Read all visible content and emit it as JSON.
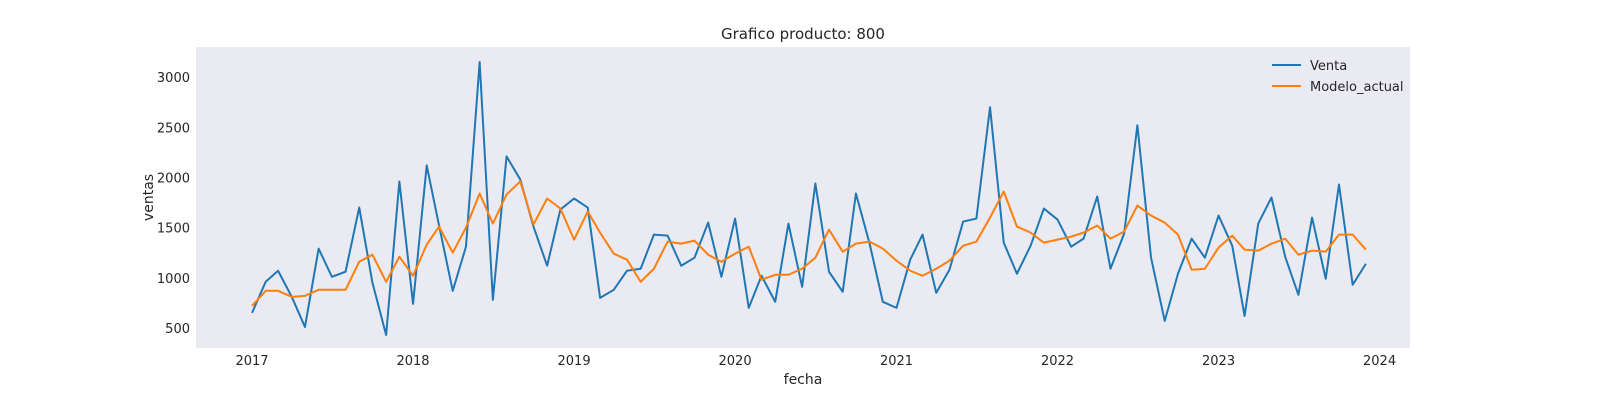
{
  "chart_data": {
    "type": "line",
    "title": "Grafico producto: 800",
    "xlabel": "fecha",
    "ylabel": "ventas",
    "xlim": [
      "2016-08-27",
      "2024-03-10"
    ],
    "ylim": [
      300,
      3300
    ],
    "x_ticks": [
      "2017",
      "2018",
      "2019",
      "2020",
      "2021",
      "2022",
      "2023",
      "2024"
    ],
    "y_ticks": [
      500,
      1000,
      1500,
      2000,
      2500,
      3000
    ],
    "grid": false,
    "legend_position": "top-right",
    "background_color": "#eaeaf2",
    "x": [
      "2017-01",
      "2017-02",
      "2017-03",
      "2017-04",
      "2017-05",
      "2017-06",
      "2017-07",
      "2017-08",
      "2017-09",
      "2017-10",
      "2017-11",
      "2017-12",
      "2018-01",
      "2018-02",
      "2018-03",
      "2018-04",
      "2018-05",
      "2018-06",
      "2018-07",
      "2018-08",
      "2018-09",
      "2018-10",
      "2018-11",
      "2018-12",
      "2019-01",
      "2019-02",
      "2019-03",
      "2019-04",
      "2019-05",
      "2019-06",
      "2019-07",
      "2019-08",
      "2019-09",
      "2019-10",
      "2019-11",
      "2019-12",
      "2020-01",
      "2020-02",
      "2020-03",
      "2020-04",
      "2020-05",
      "2020-06",
      "2020-07",
      "2020-08",
      "2020-09",
      "2020-10",
      "2020-11",
      "2020-12",
      "2021-01",
      "2021-02",
      "2021-03",
      "2021-04",
      "2021-05",
      "2021-06",
      "2021-07",
      "2021-08",
      "2021-09",
      "2021-10",
      "2021-11",
      "2021-12",
      "2022-01",
      "2022-02",
      "2022-03",
      "2022-04",
      "2022-05",
      "2022-06",
      "2022-07",
      "2022-08",
      "2022-09",
      "2022-10",
      "2022-11",
      "2022-12",
      "2023-01",
      "2023-02",
      "2023-03",
      "2023-04",
      "2023-05",
      "2023-06",
      "2023-07",
      "2023-08",
      "2023-09",
      "2023-10",
      "2023-11",
      "2023-12"
    ],
    "series": [
      {
        "name": "Venta",
        "color": "#1f77b4",
        "values": [
          650,
          960,
          1070,
          810,
          510,
          1290,
          1010,
          1060,
          1700,
          950,
          430,
          1960,
          740,
          2120,
          1520,
          870,
          1310,
          3150,
          780,
          2210,
          1980,
          1510,
          1120,
          1680,
          1790,
          1700,
          800,
          880,
          1070,
          1090,
          1430,
          1420,
          1120,
          1200,
          1550,
          1010,
          1590,
          700,
          1020,
          760,
          1540,
          910,
          1940,
          1060,
          860,
          1840,
          1340,
          760,
          700,
          1180,
          1430,
          850,
          1080,
          1560,
          1590,
          2700,
          1350,
          1040,
          1320,
          1690,
          1580,
          1310,
          1390,
          1810,
          1090,
          1440,
          2520,
          1200,
          570,
          1040,
          1390,
          1200,
          1620,
          1320,
          620,
          1540,
          1800,
          1210,
          830,
          1600,
          990,
          1930,
          930,
          1140
        ]
      },
      {
        "name": "Modelo_actual",
        "color": "#ff7f0e",
        "values": [
          720,
          870,
          870,
          810,
          820,
          880,
          880,
          880,
          1160,
          1230,
          960,
          1210,
          1020,
          1330,
          1510,
          1250,
          1500,
          1840,
          1540,
          1830,
          1960,
          1530,
          1790,
          1690,
          1380,
          1660,
          1450,
          1240,
          1180,
          960,
          1090,
          1360,
          1340,
          1370,
          1230,
          1160,
          1240,
          1310,
          980,
          1030,
          1030,
          1090,
          1200,
          1480,
          1260,
          1340,
          1360,
          1290,
          1170,
          1070,
          1020,
          1090,
          1170,
          1320,
          1360,
          1600,
          1860,
          1510,
          1450,
          1350,
          1380,
          1410,
          1450,
          1520,
          1390,
          1460,
          1720,
          1620,
          1550,
          1430,
          1080,
          1090,
          1300,
          1420,
          1280,
          1270,
          1340,
          1390,
          1230,
          1270,
          1260,
          1430,
          1430,
          1280
        ]
      }
    ]
  }
}
